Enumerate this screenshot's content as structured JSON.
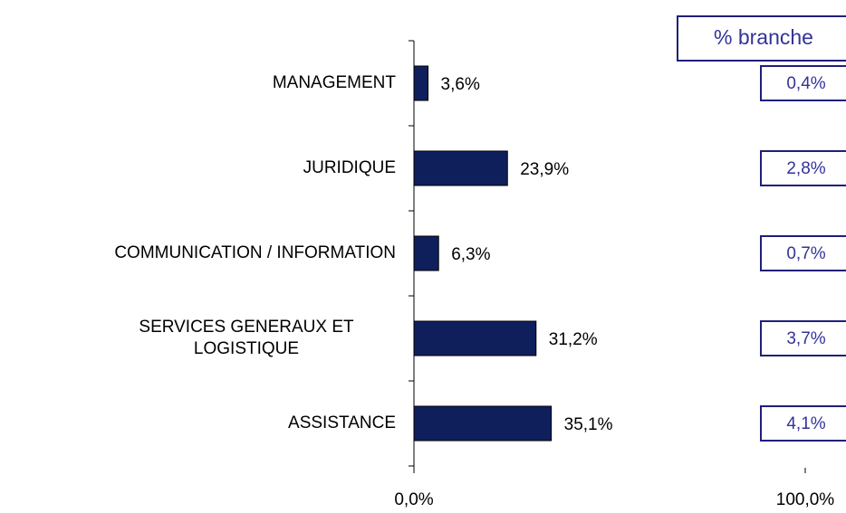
{
  "chart_data": {
    "type": "bar",
    "orientation": "horizontal",
    "categories": [
      "MANAGEMENT",
      "JURIDIQUE",
      "COMMUNICATION / INFORMATION",
      "SERVICES GENERAUX ET LOGISTIQUE",
      "ASSISTANCE"
    ],
    "values": [
      3.6,
      23.9,
      6.3,
      31.2,
      35.1
    ],
    "value_labels": [
      "3,6%",
      "23,9%",
      "6,3%",
      "31,2%",
      "35,1%"
    ],
    "color": "#0f1f5c",
    "xlim": [
      0,
      100
    ],
    "xticks": [
      {
        "value": 0,
        "label": "0,0%"
      },
      {
        "value": 100,
        "label": "100,0%"
      }
    ],
    "branch_share": {
      "title": "% branche",
      "values": [
        0.4,
        2.8,
        0.7,
        3.7,
        4.1
      ],
      "value_labels": [
        "0,4%",
        "2,8%",
        "0,7%",
        "3,7%",
        "4,1%"
      ],
      "color": "#333399"
    }
  }
}
